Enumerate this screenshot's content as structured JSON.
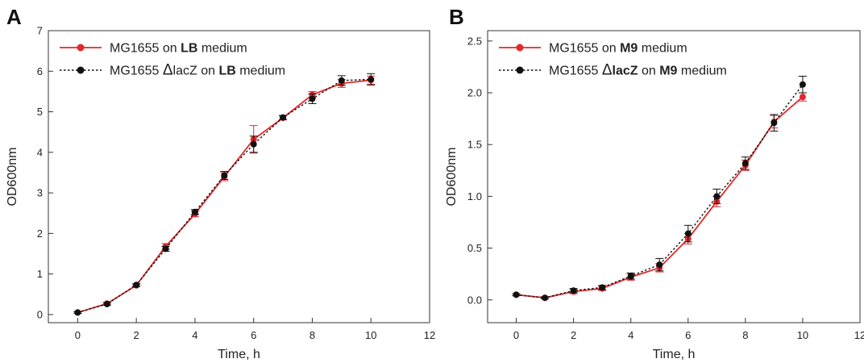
{
  "colors": {
    "red": "#e3272a",
    "black": "#111111",
    "axis": "#333333"
  },
  "chart_data": [
    {
      "type": "line",
      "panel_label": "A",
      "xlabel": "Time, h",
      "ylabel": "OD600nm",
      "xlim": [
        -1,
        12
      ],
      "ylim": [
        -0.2,
        7
      ],
      "xticks": [
        0,
        2,
        4,
        6,
        8,
        10,
        12
      ],
      "yticks": [
        0,
        1,
        2,
        3,
        4,
        5,
        6,
        7
      ],
      "ytick_labels": [
        "0",
        "1",
        "2",
        "3",
        "4",
        "5",
        "6",
        "7"
      ],
      "legend_position": "top-left",
      "series": [
        {
          "name": "MG1655 on LB medium",
          "legend_parts": [
            {
              "text": "MG1655 on ",
              "bold": false
            },
            {
              "text": "LB",
              "bold": true
            },
            {
              "text": " medium",
              "bold": false
            }
          ],
          "color": "#e3272a",
          "style": "solid",
          "x": [
            0,
            1,
            2,
            3,
            4,
            5,
            6,
            7,
            8,
            9,
            10
          ],
          "y": [
            0.05,
            0.27,
            0.72,
            1.68,
            2.48,
            3.4,
            4.32,
            4.85,
            5.42,
            5.7,
            5.78
          ],
          "err": [
            0.02,
            0.03,
            0.03,
            0.07,
            0.07,
            0.1,
            0.34,
            0.05,
            0.08,
            0.1,
            0.1
          ]
        },
        {
          "name": "MG1655 ΔlacZ on LB medium",
          "legend_parts": [
            {
              "text": "MG1655 ",
              "bold": false
            },
            {
              "text": "Δ",
              "bold": false
            },
            {
              "text": "lacZ",
              "bold": false
            },
            {
              "text": " on ",
              "bold": false
            },
            {
              "text": "LB",
              "bold": true
            },
            {
              "text": " medium",
              "bold": false
            }
          ],
          "color": "#111111",
          "style": "dotted",
          "x": [
            0,
            1,
            2,
            3,
            4,
            5,
            6,
            7,
            8,
            9,
            10
          ],
          "y": [
            0.05,
            0.26,
            0.73,
            1.62,
            2.53,
            3.43,
            4.2,
            4.86,
            5.32,
            5.77,
            5.8
          ],
          "err": [
            0.02,
            0.03,
            0.03,
            0.06,
            0.06,
            0.1,
            0.2,
            0.05,
            0.12,
            0.12,
            0.14
          ]
        }
      ]
    },
    {
      "type": "line",
      "panel_label": "B",
      "xlabel": "Time, h",
      "ylabel": "OD600nm",
      "xlim": [
        -1,
        12
      ],
      "ylim": [
        -0.22,
        2.6
      ],
      "xticks": [
        0,
        2,
        4,
        6,
        8,
        10,
        12
      ],
      "yticks": [
        0,
        0.5,
        1.0,
        1.5,
        2.0,
        2.5
      ],
      "ytick_labels": [
        "0.0",
        "0.5",
        "1.0",
        "1.5",
        "2.0",
        "2.5"
      ],
      "legend_position": "top-left",
      "series": [
        {
          "name": "MG1655 on M9 medium",
          "legend_parts": [
            {
              "text": "MG1655 on ",
              "bold": false
            },
            {
              "text": "M9",
              "bold": true
            },
            {
              "text": " medium",
              "bold": false
            }
          ],
          "color": "#e3272a",
          "style": "solid",
          "x": [
            0,
            1,
            2,
            3,
            4,
            5,
            6,
            7,
            8,
            9,
            10
          ],
          "y": [
            0.05,
            0.02,
            0.08,
            0.11,
            0.22,
            0.31,
            0.59,
            0.95,
            1.3,
            1.72,
            1.96
          ],
          "err": [
            0.01,
            0.01,
            0.02,
            0.02,
            0.03,
            0.04,
            0.05,
            0.05,
            0.05,
            0.06,
            0.04
          ]
        },
        {
          "name": "MG1655 ΔlacZ on M9 medium",
          "legend_parts": [
            {
              "text": "MG1655 ",
              "bold": false
            },
            {
              "text": "Δ",
              "bold": false
            },
            {
              "text": "lacZ",
              "bold": true
            },
            {
              "text": " on ",
              "bold": false
            },
            {
              "text": "M9",
              "bold": true
            },
            {
              "text": " medium",
              "bold": false
            }
          ],
          "color": "#111111",
          "style": "dotted",
          "x": [
            0,
            1,
            2,
            3,
            4,
            5,
            6,
            7,
            8,
            9,
            10
          ],
          "y": [
            0.05,
            0.02,
            0.09,
            0.12,
            0.23,
            0.34,
            0.64,
            1.0,
            1.32,
            1.71,
            2.08
          ],
          "err": [
            0.01,
            0.01,
            0.02,
            0.02,
            0.03,
            0.06,
            0.08,
            0.07,
            0.06,
            0.08,
            0.08
          ]
        }
      ]
    }
  ]
}
